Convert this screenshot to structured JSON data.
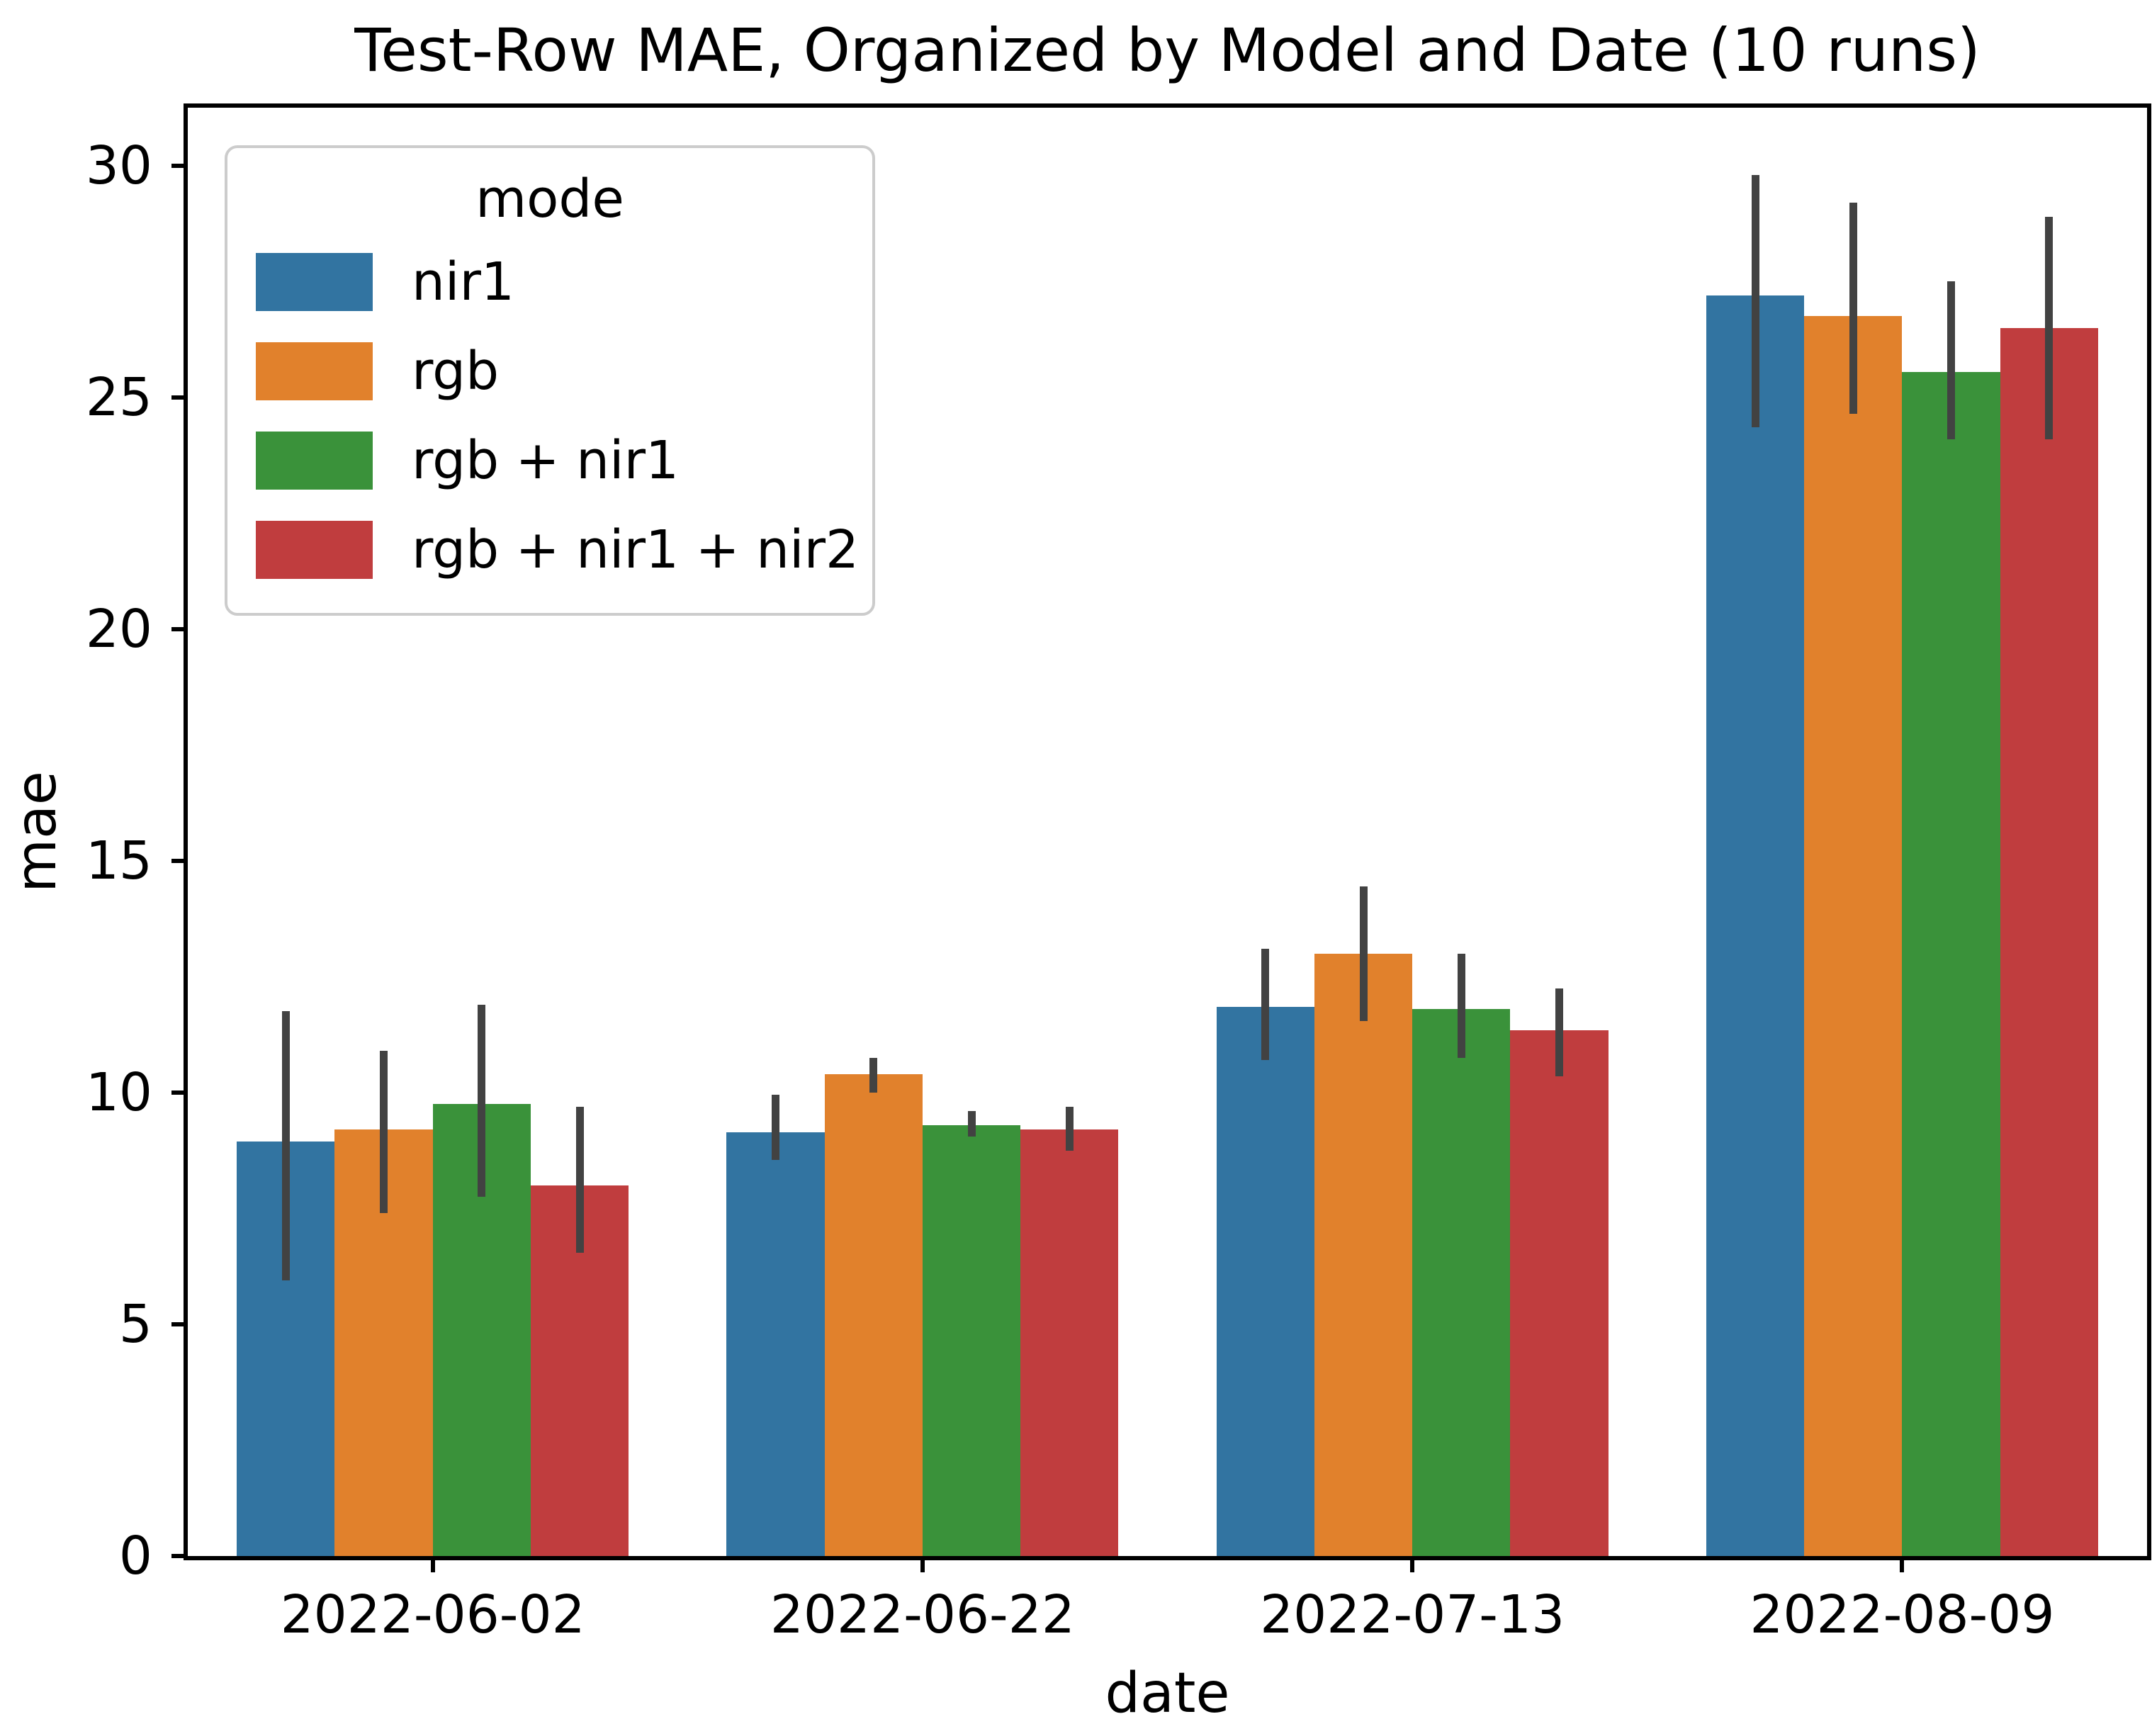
{
  "figure": {
    "title": "Test-Row MAE, Organized by Model and Date (10 runs)",
    "xlabel": "date",
    "ylabel": "mae"
  },
  "legend": {
    "title": "mode",
    "position": "upper left",
    "items": [
      {
        "label": "nir1",
        "color": "#3274a1"
      },
      {
        "label": "rgb",
        "color": "#e1812c"
      },
      {
        "label": "rgb + nir1",
        "color": "#3a923a"
      },
      {
        "label": "rgb + nir1 + nir2",
        "color": "#c03d3e"
      }
    ]
  },
  "chart_data": {
    "type": "bar",
    "title": "Test-Row MAE, Organized by Model and Date (10 runs)",
    "xlabel": "date",
    "ylabel": "mae",
    "categories": [
      "2022-06-02",
      "2022-06-22",
      "2022-07-13",
      "2022-08-09"
    ],
    "series": [
      {
        "name": "nir1",
        "color": "#3274a1",
        "values": [
          8.95,
          9.15,
          11.85,
          27.2
        ],
        "ci_low": [
          5.95,
          8.55,
          10.7,
          24.35
        ],
        "ci_high": [
          11.75,
          9.95,
          13.1,
          29.8
        ]
      },
      {
        "name": "rgb",
        "color": "#e1812c",
        "values": [
          9.2,
          10.4,
          13.0,
          26.75
        ],
        "ci_low": [
          7.4,
          10.0,
          11.55,
          24.65
        ],
        "ci_high": [
          10.9,
          10.75,
          14.45,
          29.2
        ]
      },
      {
        "name": "rgb + nir1",
        "color": "#3a923a",
        "values": [
          9.75,
          9.3,
          11.8,
          25.55
        ],
        "ci_low": [
          7.75,
          9.05,
          10.75,
          24.1
        ],
        "ci_high": [
          11.9,
          9.6,
          13.0,
          27.5
        ]
      },
      {
        "name": "rgb + nir1 + nir2",
        "color": "#c03d3e",
        "values": [
          8.0,
          9.2,
          11.35,
          26.5
        ],
        "ci_low": [
          6.55,
          8.75,
          10.35,
          24.1
        ],
        "ci_high": [
          9.7,
          9.7,
          12.25,
          28.9
        ]
      }
    ],
    "error_bar_color": "#424242",
    "ylim": [
      0,
      31.25
    ],
    "yticks": [
      0,
      5,
      10,
      15,
      20,
      25,
      30
    ],
    "grid": false,
    "legend_position": "upper left",
    "group_width_fraction": 0.8
  }
}
